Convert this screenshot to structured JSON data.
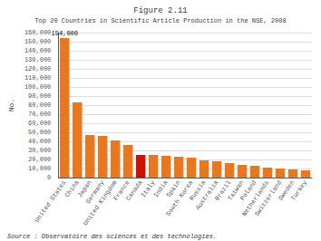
{
  "chart_data": {
    "type": "bar",
    "title": "Figure 2.11",
    "subtitle": "Top 20 Countries in Scientific Article Production in the NSE, 2008",
    "ylabel": "No.",
    "source": "Source : Observatoire des sciences et des technologies.",
    "categories": [
      "United States",
      "China",
      "Japan",
      "Germany",
      "United Kingdom",
      "France",
      "Canada",
      "Italy",
      "India",
      "Spain",
      "South Korea",
      "Russia",
      "Australia",
      "Brazil",
      "Taiwan",
      "Poland",
      "Netherlands",
      "Switzerland",
      "Sweden",
      "Turkey"
    ],
    "values": [
      154000,
      83000,
      47000,
      46000,
      41000,
      36000,
      25000,
      25000,
      24000,
      23000,
      22000,
      19000,
      18000,
      16000,
      14000,
      13000,
      11000,
      10000,
      9000,
      8000
    ],
    "colors": [
      "#E87820",
      "#E87820",
      "#E87820",
      "#E87820",
      "#E87820",
      "#E87820",
      "#CC1100",
      "#E87820",
      "#E87820",
      "#E87820",
      "#E87820",
      "#E87820",
      "#E87820",
      "#E87820",
      "#E87820",
      "#E87820",
      "#E87820",
      "#E87820",
      "#E87820",
      "#E87820"
    ],
    "annotations": [
      {
        "text": "154,000",
        "x": "United States"
      }
    ],
    "ylim": [
      0,
      160000
    ],
    "yticks": [
      0,
      {
        "value": 10000,
        "label": "10,000"
      },
      {
        "value": 20000,
        "label": "20,000"
      },
      {
        "value": 30000,
        "label": "30,000"
      },
      {
        "value": 40000,
        "label": "40,000"
      },
      {
        "value": 50000,
        "label": "50,000"
      },
      {
        "value": 60000,
        "label": "60,000"
      },
      {
        "value": 70000,
        "label": "70,000"
      },
      {
        "value": 80000,
        "label": "80,000"
      },
      {
        "value": 90000,
        "label": "90,000"
      },
      {
        "value": 100000,
        "label": "100,000"
      },
      {
        "value": 110000,
        "label": "110,000"
      },
      {
        "value": 120000,
        "label": "120,000"
      },
      {
        "value": 130000,
        "label": "130,000"
      },
      {
        "value": 140000,
        "label": "140,000"
      },
      {
        "value": 150000,
        "label": "150,000"
      },
      {
        "value": 160000,
        "label": "160,000"
      }
    ],
    "grid": true
  }
}
